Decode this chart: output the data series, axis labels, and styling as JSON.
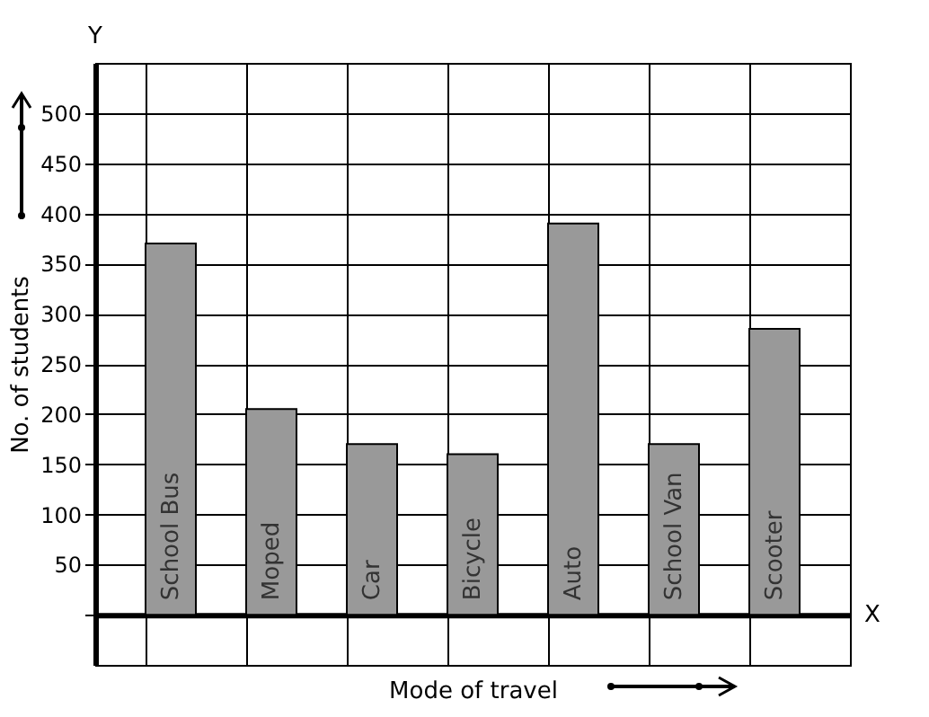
{
  "chart_data": {
    "type": "bar",
    "xlabel": "Mode of travel",
    "ylabel": "No. of students",
    "categories": [
      "School Bus",
      "Moped",
      "Car",
      "Bicycle",
      "Auto",
      "School Van",
      "Scooter"
    ],
    "values": [
      370,
      205,
      170,
      160,
      390,
      170,
      285
    ],
    "color": "#999999",
    "ylim": [
      -50,
      550
    ],
    "yticks": [
      {
        "value": 0,
        "label": null
      },
      50,
      100,
      150,
      200,
      250,
      300,
      350,
      400,
      450,
      500
    ],
    "grid": true,
    "annotations": [
      "Y",
      "X"
    ]
  }
}
